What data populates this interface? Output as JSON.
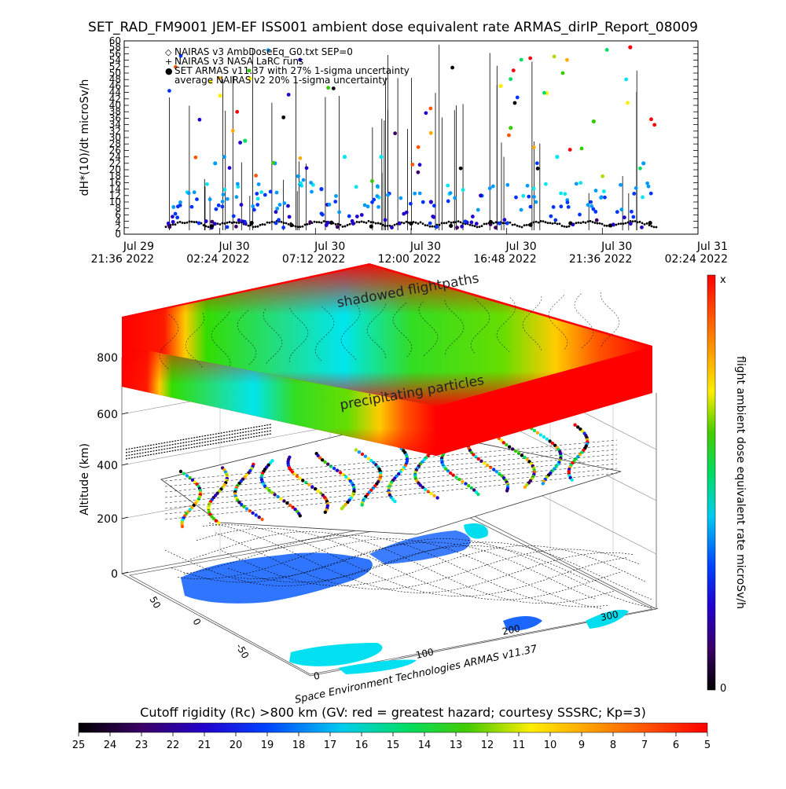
{
  "title": "SET_RAD_FM9001  JEM-EF ISS001 ambient dose equivalent rate ARMAS_dirIP_Report_08009",
  "chart_data": [
    {
      "type": "scatter",
      "ylabel": "dH*(10)/dt microSv/h",
      "ylim": [
        0,
        60
      ],
      "yticks": [
        "0",
        "2",
        "4",
        "6",
        "8",
        "10",
        "12",
        "14",
        "16",
        "18",
        "20",
        "22",
        "24",
        "26",
        "28",
        "30",
        "32",
        "34",
        "36",
        "38",
        "40",
        "42",
        "44",
        "46",
        "48",
        "50",
        "52",
        "54",
        "56",
        "58",
        "60"
      ],
      "xticks": [
        {
          "date": "Jul 29",
          "time": "21:36 2022"
        },
        {
          "date": "Jul 30",
          "time": "02:24 2022"
        },
        {
          "date": "Jul 30",
          "time": "07:12 2022"
        },
        {
          "date": "Jul 30",
          "time": "12:00 2022"
        },
        {
          "date": "Jul 30",
          "time": "16:48 2022"
        },
        {
          "date": "Jul 30",
          "time": "21:36 2022"
        },
        {
          "date": "Jul 31",
          "time": "02:24 2022"
        }
      ],
      "legend": [
        {
          "symbol": "◇",
          "label": "NAIRAS v3 AmbDoseEq_G0.txt SEP=0"
        },
        {
          "symbol": "+",
          "label": "NAIRAS v3 NASA LaRC runs"
        },
        {
          "symbol": "●",
          "label": "SET ARMAS v11.37 with 27% 1-sigma uncertainty"
        },
        {
          "symbol": "",
          "label": "average NAIRAS v2 20% 1-sigma uncertainty"
        }
      ],
      "legend_position": "top-left",
      "series": [
        {
          "name": "NAIRAS v3 AmbDoseEq_G0.txt SEP=0",
          "x": [
            "2022-07-30T02:00",
            "2022-07-30T04:00",
            "2022-07-30T06:00",
            "2022-07-30T08:00",
            "2022-07-30T10:00",
            "2022-07-30T12:00",
            "2022-07-30T14:00",
            "2022-07-30T16:00",
            "2022-07-30T18:00",
            "2022-07-30T20:00",
            "2022-07-30T22:00",
            "2022-07-31T00:00"
          ],
          "y": [
            2.5,
            3.5,
            2.8,
            3.6,
            2.4,
            3.3,
            2.6,
            3.8,
            2.9,
            3.4,
            2.7,
            3.5
          ]
        },
        {
          "name": "SET ARMAS v11.37 with 27% 1-sigma uncertainty",
          "x": [
            "2022-07-30T02:10",
            "2022-07-30T02:25",
            "2022-07-30T03:40",
            "2022-07-30T05:10",
            "2022-07-30T06:20",
            "2022-07-30T07:30",
            "2022-07-30T08:40",
            "2022-07-30T10:30",
            "2022-07-30T13:00",
            "2022-07-30T15:30",
            "2022-07-30T16:30",
            "2022-07-30T17:00",
            "2022-07-30T19:20",
            "2022-07-30T21:10",
            "2022-07-30T23:00",
            "2022-07-30T23:40"
          ],
          "y": [
            22,
            43,
            29,
            22,
            18,
            14,
            24,
            24,
            10,
            12,
            46,
            33,
            24,
            35,
            58,
            22
          ]
        }
      ]
    },
    {
      "type": "heatmap",
      "zlabel": "Altitude (km)",
      "zticks": [
        "0",
        "200",
        "400",
        "600",
        "800"
      ],
      "xticks": [
        "0",
        "100",
        "200",
        "300"
      ],
      "yticks": [
        "50",
        "0",
        "-50"
      ],
      "annotations": [
        "shadowed flightpaths",
        "precipitating particles"
      ],
      "credit": "Space Environment Technologies ARMAS v11.37"
    }
  ],
  "colorbar_right": {
    "label": "flight ambient dose equivalent rate microSv/h",
    "top_label": "x",
    "bottom_label": "0"
  },
  "colorbar_bottom": {
    "title": "Cutoff rigidity (Rc) >800 km (GV: red = greatest hazard; courtesy SSSRC; Kp=3)",
    "ticks": [
      "25",
      "24",
      "23",
      "22",
      "21",
      "20",
      "19",
      "18",
      "17",
      "16",
      "15",
      "14",
      "13",
      "12",
      "11",
      "10",
      "9",
      "8",
      "7",
      "6",
      "5"
    ]
  },
  "colors": {
    "rainbow": [
      "#000000",
      "#3a0066",
      "#2200cc",
      "#0033ff",
      "#0099ff",
      "#00e5ee",
      "#00dd66",
      "#33cc00",
      "#aadd00",
      "#ffee00",
      "#ffaa00",
      "#ff5500",
      "#ff0000"
    ]
  }
}
